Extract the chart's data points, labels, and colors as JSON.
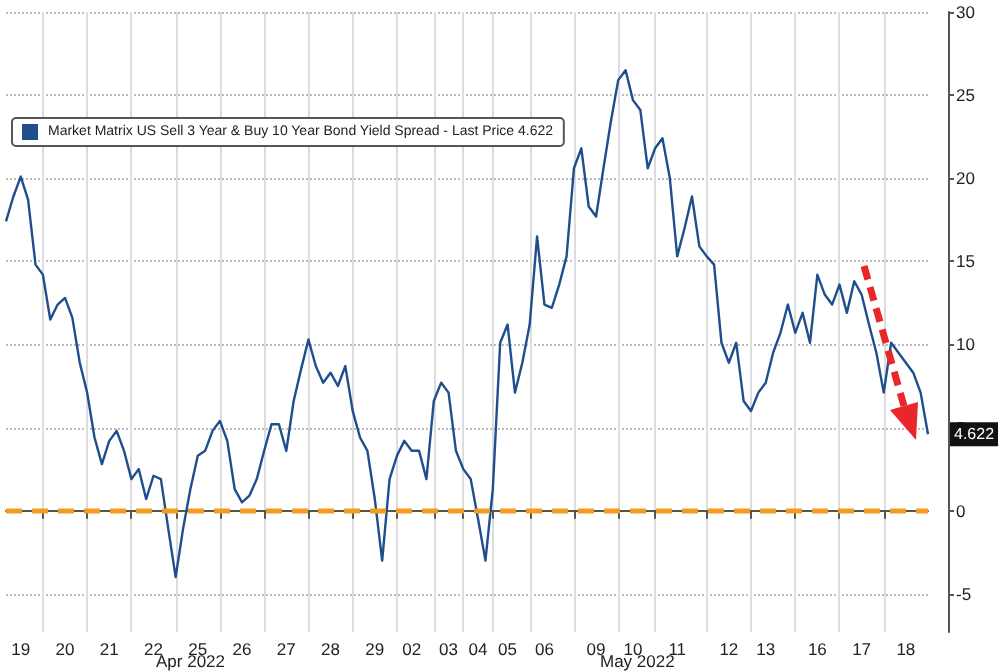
{
  "chart_data": {
    "type": "line",
    "categories": [
      null,
      null,
      "19",
      null,
      null,
      null,
      null,
      null,
      "20",
      null,
      null,
      null,
      null,
      null,
      "21",
      null,
      null,
      null,
      null,
      null,
      "22",
      null,
      null,
      null,
      null,
      null,
      "25",
      null,
      null,
      null,
      null,
      null,
      "26",
      null,
      null,
      null,
      null,
      null,
      "27",
      null,
      null,
      null,
      null,
      null,
      "28",
      null,
      null,
      null,
      null,
      null,
      "29",
      null,
      null,
      null,
      null,
      "02",
      null,
      null,
      null,
      null,
      "03",
      null,
      null,
      null,
      "04",
      null,
      null,
      null,
      "05",
      null,
      null,
      null,
      null,
      "06",
      null,
      null,
      null,
      null,
      null,
      null,
      "09",
      null,
      null,
      null,
      null,
      "10",
      null,
      null,
      null,
      null,
      null,
      "11",
      null,
      null,
      null,
      null,
      null,
      null,
      "12",
      null,
      null,
      null,
      null,
      "13",
      null,
      null,
      null,
      null,
      null,
      null,
      "16",
      null,
      null,
      null,
      null,
      null,
      "17",
      null,
      null,
      null,
      null,
      null,
      "18",
      null,
      null,
      null
    ],
    "series": [
      {
        "name": "Market Matrix US Sell 3 Year & Buy 10 Year Bond Yield Spread - Last Price 4.622",
        "color": "#1f4e8c",
        "values": [
          17.4,
          18.9,
          20.1,
          18.7,
          14.8,
          14.2,
          11.5,
          12.4,
          12.8,
          11.6,
          8.9,
          7.1,
          4.4,
          2.8,
          4.2,
          4.8,
          3.6,
          1.9,
          2.5,
          0.7,
          2.1,
          1.9,
          -1.1,
          -4.0,
          -1.1,
          1.3,
          3.3,
          3.6,
          4.8,
          5.4,
          4.2,
          1.3,
          0.5,
          0.9,
          1.9,
          3.6,
          5.2,
          5.2,
          3.6,
          6.6,
          8.5,
          10.3,
          8.7,
          7.7,
          8.3,
          7.5,
          8.7,
          6.0,
          4.4,
          3.6,
          0.7,
          -3.0,
          1.9,
          3.3,
          4.2,
          3.6,
          3.6,
          1.9,
          6.6,
          7.7,
          7.1,
          3.6,
          2.5,
          1.9,
          -0.5,
          -3.0,
          1.3,
          10.1,
          11.2,
          7.1,
          8.9,
          11.2,
          16.5,
          12.4,
          12.2,
          13.6,
          15.3,
          20.6,
          21.8,
          18.3,
          17.7,
          20.6,
          23.4,
          25.9,
          26.5,
          24.7,
          24.1,
          20.6,
          21.8,
          22.4,
          20.0,
          15.3,
          17.0,
          18.9,
          15.9,
          15.3,
          14.8,
          10.1,
          8.9,
          10.1,
          6.6,
          6.0,
          7.1,
          7.7,
          9.5,
          10.7,
          12.4,
          10.7,
          11.9,
          10.1,
          14.2,
          13.0,
          12.4,
          13.6,
          11.9,
          13.8,
          13.0,
          11.2,
          9.5,
          7.1,
          10.1,
          9.5,
          8.9,
          8.3,
          7.1,
          4.6
        ]
      }
    ],
    "ylim": [
      -7.3,
      30
    ],
    "yticks": [
      -5,
      0,
      5,
      10,
      15,
      20,
      25,
      30
    ],
    "ref_lines": [
      {
        "axis": "y",
        "value": 0,
        "color": "#f39c1f",
        "line_style": "dashed"
      }
    ],
    "annotations": [
      "Apr 2022",
      "May 2022",
      "4.622"
    ],
    "grid": true,
    "legend": "top left",
    "marker": "none",
    "line_style": "solid"
  }
}
